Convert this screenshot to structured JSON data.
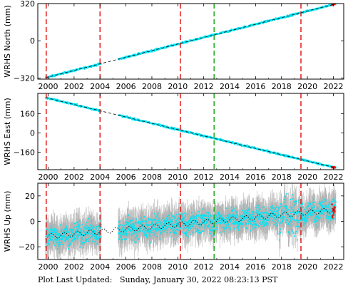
{
  "footer": {
    "label": "Plot Last Updated:",
    "timestamp": "Sunday, January 30, 2022 08:23:13 PST"
  },
  "colors": {
    "data": "#00e5f5",
    "error_bar": "#b4b4b4",
    "model": "#000000",
    "event_red": "#e01818",
    "event_green": "#1eaa1e",
    "recent": "#e01818"
  },
  "chart_data": [
    {
      "type": "scatter",
      "panel": "north",
      "ylabel": "WRHS North (mm)",
      "xlim": [
        1999.2,
        2022.8
      ],
      "ylim": [
        -330,
        320
      ],
      "yticks": [
        -320,
        0,
        320
      ],
      "xticks": [
        2000,
        2002,
        2004,
        2006,
        2008,
        2010,
        2012,
        2014,
        2016,
        2018,
        2020,
        2022
      ],
      "gaps": [
        [
          2004.1,
          2005.4
        ]
      ],
      "series": [
        {
          "kind": "trend",
          "x": [
            1999.8,
            2022.2
          ],
          "y": [
            -318,
            318
          ]
        }
      ],
      "scatter_sd": 6,
      "errorbar": 4,
      "vlines_red": [
        1999.85,
        2004.0,
        2010.2,
        2019.5
      ],
      "vlines_green": [
        2012.8
      ]
    },
    {
      "type": "scatter",
      "panel": "east",
      "ylabel": "WRHS East (mm)",
      "xlim": [
        1999.2,
        2022.8
      ],
      "ylim": [
        -305,
        330
      ],
      "yticks": [
        -160,
        0,
        160
      ],
      "xticks": [
        2000,
        2002,
        2004,
        2006,
        2008,
        2010,
        2012,
        2014,
        2016,
        2018,
        2020,
        2022
      ],
      "gaps": [
        [
          2004.1,
          2005.4
        ]
      ],
      "series": [
        {
          "kind": "trend",
          "x": [
            1999.8,
            2022.2
          ],
          "y": [
            295,
            -290
          ]
        }
      ],
      "scatter_sd": 6,
      "errorbar": 4,
      "vlines_red": [
        1999.85,
        2004.0,
        2010.2,
        2019.5
      ],
      "vlines_green": [
        2012.8
      ]
    },
    {
      "type": "scatter",
      "panel": "up",
      "ylabel": "WRHS Up (mm)",
      "xlim": [
        1999.2,
        2022.8
      ],
      "ylim": [
        -30,
        30
      ],
      "yticks": [
        -20,
        0,
        20
      ],
      "xticks": [
        2000,
        2002,
        2004,
        2006,
        2008,
        2010,
        2012,
        2014,
        2016,
        2018,
        2020,
        2022
      ],
      "gaps": [
        [
          2004.1,
          2005.4
        ]
      ],
      "series": [
        {
          "kind": "trend",
          "x": [
            1999.8,
            2022.2
          ],
          "y": [
            -12,
            9
          ],
          "seasonal_amp": 2
        }
      ],
      "scatter_sd": 6,
      "errorbar": 9,
      "vlines_red": [
        1999.85,
        2004.0,
        2010.2,
        2019.5
      ],
      "vlines_green": [
        2012.8
      ]
    }
  ]
}
